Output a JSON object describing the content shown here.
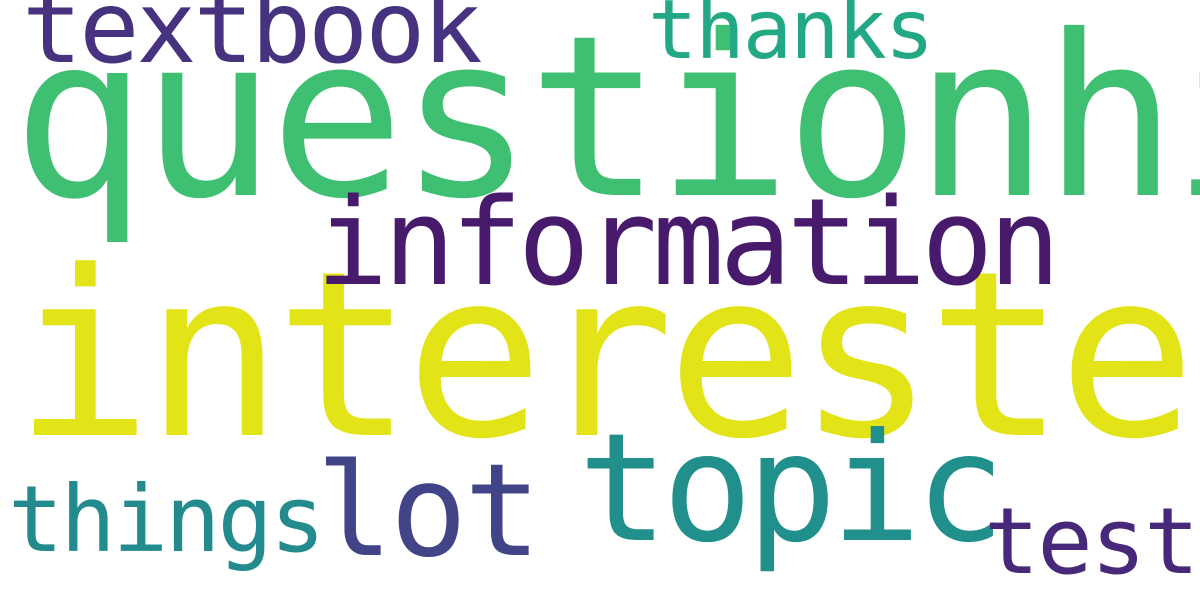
{
  "word_cloud": {
    "background": "#ffffff",
    "words": [
      {
        "text": "questionhi",
        "color": "#3fbf72"
      },
      {
        "text": "interested",
        "color": "#e2e418"
      },
      {
        "text": "information",
        "color": "#481a6c"
      },
      {
        "text": "topic",
        "color": "#21908d"
      },
      {
        "text": "textbook",
        "color": "#46327f"
      },
      {
        "text": "thanks",
        "color": "#22a884"
      },
      {
        "text": "things",
        "color": "#238a8d"
      },
      {
        "text": "lot",
        "color": "#414487"
      },
      {
        "text": "test",
        "color": "#482878"
      }
    ]
  }
}
